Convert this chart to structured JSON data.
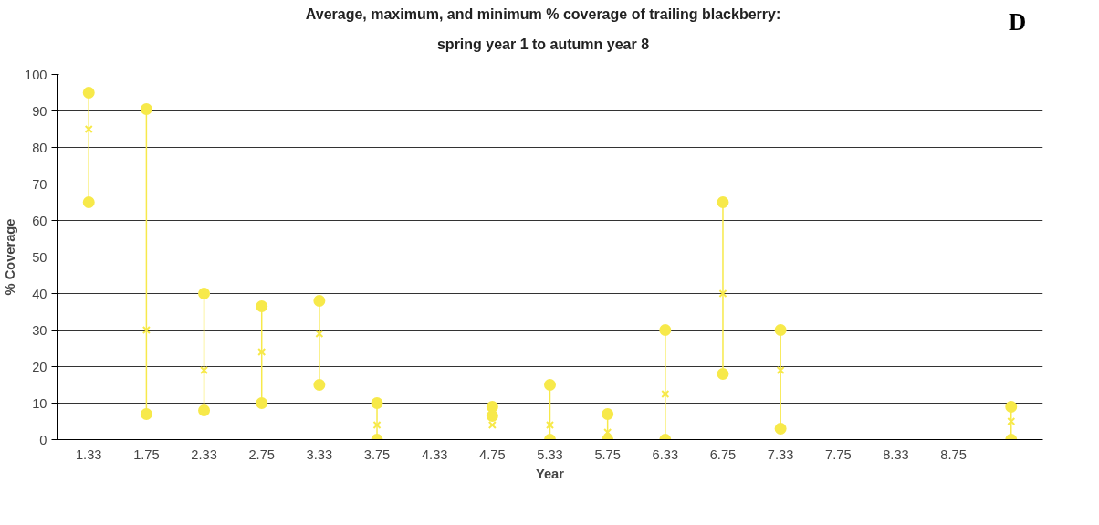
{
  "chart_data": {
    "type": "scatter",
    "title": "Average, maximum, and minimum % coverage of trailing blackberry:\nspring year 1 to autumn year 8",
    "xlabel": "Year",
    "ylabel": "% Coverage",
    "annotations": [
      "D"
    ],
    "categories": [
      "1.33",
      "1.75",
      "2.33",
      "2.75",
      "3.33",
      "3.75",
      "4.33",
      "4.75",
      "5.33",
      "5.75",
      "6.33",
      "6.75",
      "7.33",
      "7.75",
      "8.33",
      "8.75",
      null
    ],
    "series": [
      {
        "color": "#f7e94a",
        "marker": "circle",
        "values": [
          95,
          90.5,
          40,
          36.5,
          38,
          10,
          null,
          9,
          15,
          7,
          30,
          65,
          30,
          null,
          null,
          null,
          9
        ]
      },
      {
        "color": "#f7e94a",
        "marker": "cross",
        "values": [
          85,
          30,
          19,
          24,
          29,
          4,
          null,
          4,
          4,
          2,
          12.5,
          40,
          19,
          null,
          null,
          null,
          5
        ]
      },
      {
        "color": "#f7e94a",
        "marker": "circle",
        "values": [
          65,
          7,
          8,
          10,
          15,
          0,
          null,
          6.5,
          0,
          0,
          0,
          18,
          3,
          null,
          null,
          null,
          0
        ]
      }
    ],
    "ylim": [
      0,
      100
    ],
    "yticks": [
      0,
      10,
      20,
      30,
      40,
      50,
      60,
      70,
      80,
      90,
      100
    ],
    "grid": "y"
  }
}
